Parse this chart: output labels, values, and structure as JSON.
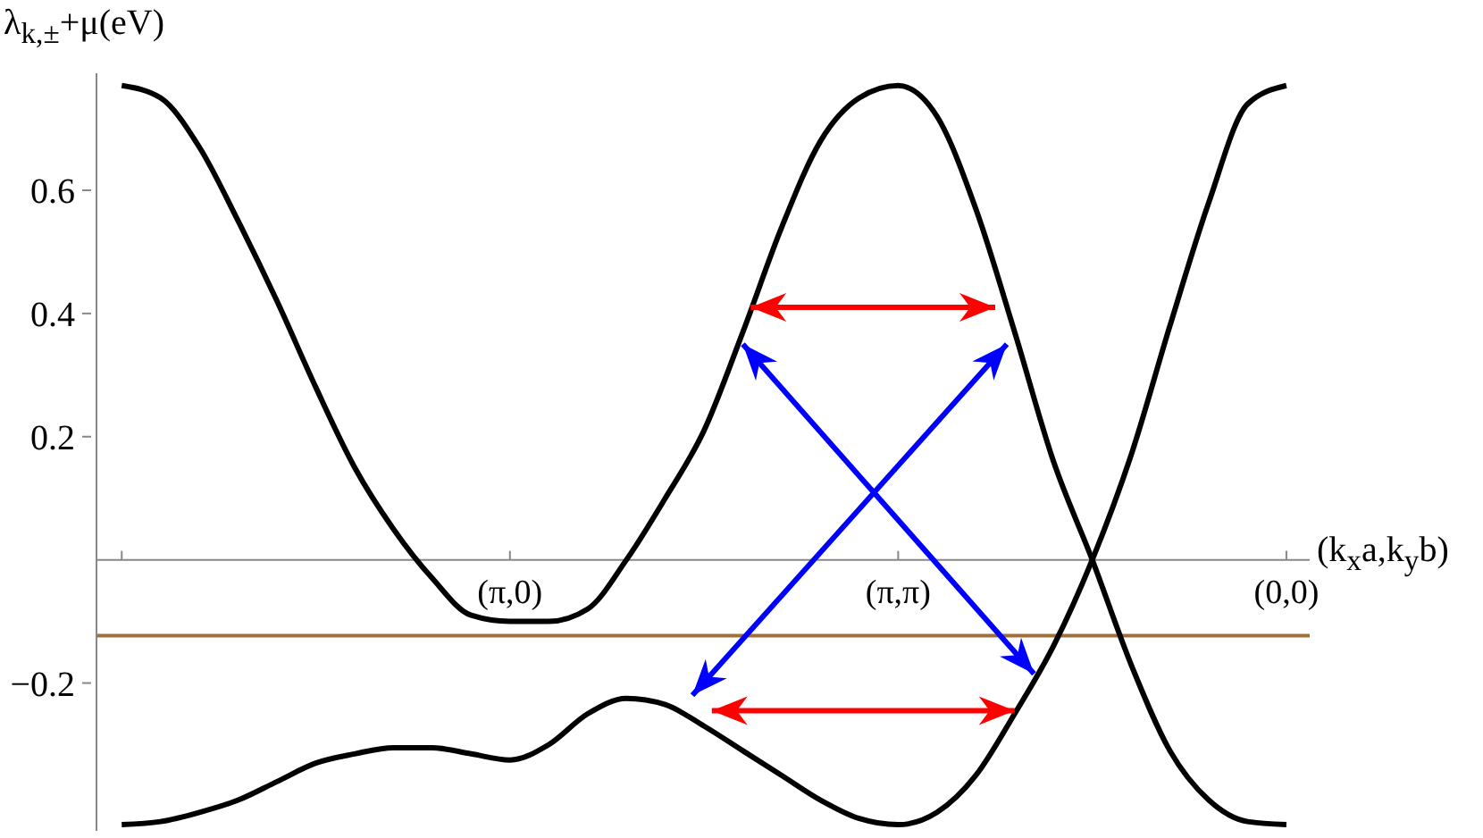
{
  "chart_data": {
    "type": "line",
    "xlabel": "(k$_{x}$a,k$_{y}$b)",
    "ylabel": "λ$_{k,±}$+μ(eV)",
    "marker": "none",
    "categories": [
      null,
      null,
      null,
      null,
      null,
      null,
      null,
      null,
      null,
      null,
      "(π,0)",
      null,
      null,
      null,
      null,
      null,
      null,
      null,
      null,
      null,
      "(π,π)",
      null,
      null,
      null,
      null,
      null,
      null,
      null,
      null,
      null,
      "(0,0)"
    ],
    "ylim": [
      -0.44,
      0.79
    ],
    "yticks": [
      {
        "value": -0.2,
        "label": "−0.2"
      },
      0.2,
      0.4,
      0.6
    ],
    "series": [
      {
        "color": "#000000",
        "values": [
          0.77,
          0.75,
          0.67,
          0.55,
          0.42,
          0.28,
          0.15,
          0.05,
          -0.03,
          -0.09,
          -0.1,
          -0.1,
          -0.08,
          0.0,
          0.1,
          0.21,
          0.37,
          0.54,
          0.68,
          0.75,
          0.77,
          0.72,
          0.57,
          0.37,
          0.16,
          0,
          -0.17,
          -0.31,
          -0.39,
          -0.425,
          -0.43
        ]
      },
      {
        "color": "#000000",
        "values": [
          -0.43,
          -0.425,
          -0.41,
          -0.39,
          -0.36,
          -0.33,
          -0.315,
          -0.305,
          -0.305,
          -0.315,
          -0.325,
          -0.3,
          -0.25,
          -0.225,
          -0.235,
          -0.27,
          -0.31,
          -0.35,
          -0.39,
          -0.42,
          -0.43,
          -0.41,
          -0.35,
          -0.25,
          -0.14,
          0,
          0.17,
          0.38,
          0.58,
          0.74,
          0.77
        ]
      }
    ],
    "ref_lines": [
      {
        "axis": "y",
        "value": -0.123,
        "color": "#a0703c"
      }
    ]
  }
}
